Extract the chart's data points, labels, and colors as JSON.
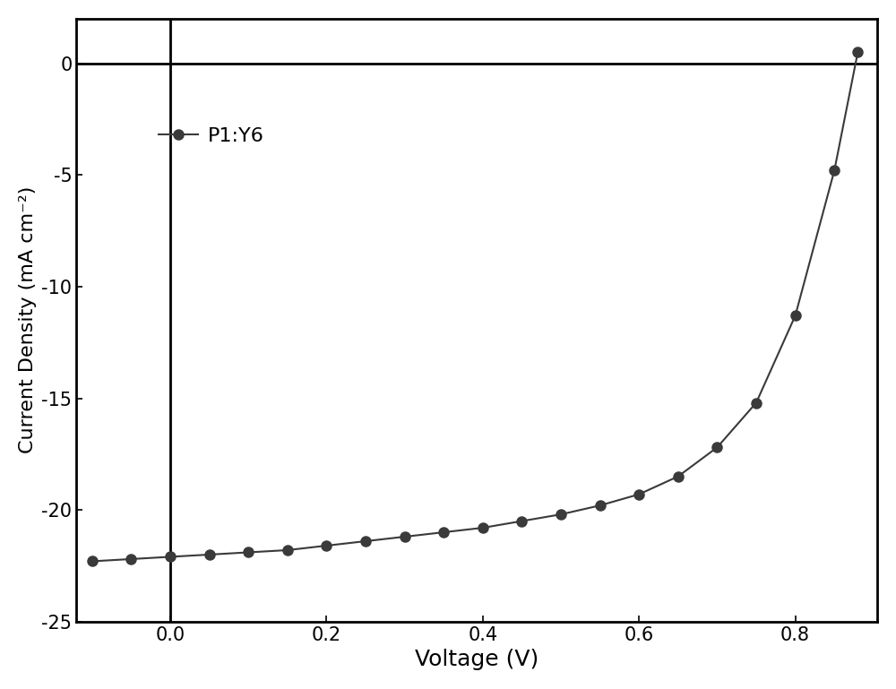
{
  "x": [
    -0.1,
    -0.05,
    0.0,
    0.05,
    0.1,
    0.15,
    0.2,
    0.25,
    0.3,
    0.35,
    0.4,
    0.45,
    0.5,
    0.55,
    0.6,
    0.65,
    0.7,
    0.75,
    0.8,
    0.85,
    0.88
  ],
  "y": [
    -22.3,
    -22.2,
    -22.1,
    -22.0,
    -21.9,
    -21.8,
    -21.6,
    -21.4,
    -21.2,
    -21.0,
    -20.8,
    -20.5,
    -20.2,
    -19.8,
    -19.3,
    -18.5,
    -17.2,
    -15.2,
    -11.3,
    -4.8,
    0.5
  ],
  "line_color": "#3a3a3a",
  "marker_color": "#3a3a3a",
  "marker_size": 8,
  "marker_style": "o",
  "line_width": 1.5,
  "xlabel": "Voltage (V)",
  "ylabel": "Current Density (mA cm⁻²)",
  "xlabel_fontsize": 18,
  "ylabel_fontsize": 16,
  "tick_fontsize": 15,
  "legend_label": "P1:Y6",
  "legend_fontsize": 16,
  "xlim": [
    -0.12,
    0.905
  ],
  "ylim": [
    -25,
    2
  ],
  "xticks": [
    0.0,
    0.2,
    0.4,
    0.6,
    0.8
  ],
  "yticks": [
    0,
    -5,
    -10,
    -15,
    -20,
    -25
  ],
  "hline_y": 0,
  "vline_x": 0,
  "background_color": "#ffffff",
  "spine_linewidth": 2.0,
  "axline_linewidth": 2.0
}
